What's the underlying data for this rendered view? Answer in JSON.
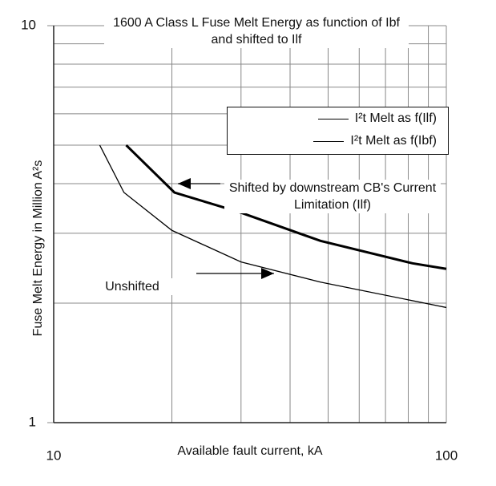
{
  "chart_data": {
    "type": "line",
    "title": "1600 A Class L Fuse Melt Energy as function of Ibf and shifted to Ilf",
    "xlabel": "Available fault current, kA",
    "ylabel": "Fuse Melt Energy in Million A²s",
    "xscale": "log",
    "yscale": "log",
    "xlim": [
      10,
      100
    ],
    "ylim": [
      1,
      10
    ],
    "xticks": [
      10,
      100
    ],
    "yticks": [
      1,
      10
    ],
    "grid": true,
    "series": [
      {
        "name": "I²t Melt as f(Ilf)",
        "color": "#000000",
        "x": [
          15.3,
          20.3,
          30,
          47.8,
          82,
          100
        ],
        "values": [
          5,
          3.8,
          3.38,
          2.87,
          2.52,
          2.44
        ]
      },
      {
        "name": "I²t Melt as f(Ibf)",
        "color": "#000000",
        "x": [
          13.1,
          15.1,
          20,
          30,
          47.8,
          100
        ],
        "values": [
          5,
          3.8,
          3.05,
          2.54,
          2.26,
          1.95
        ]
      }
    ],
    "annotations": [
      "Shifted by downstream CB's Current Limitation (Ilf)",
      "Unshifted"
    ]
  }
}
